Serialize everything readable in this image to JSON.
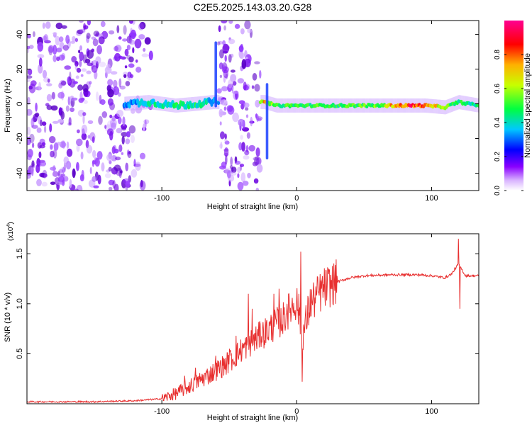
{
  "page": {
    "title": "C2E5.2025.143.03.20.G28"
  },
  "chart_data": [
    {
      "type": "heatmap",
      "xlabel": "Height of straight line (km)",
      "ylabel": "Frequency (Hz)",
      "xlim": [
        -200,
        135
      ],
      "ylim": [
        -50,
        48
      ],
      "x_ticks": [
        -100,
        0,
        100
      ],
      "y_ticks": [
        -40,
        -20,
        0,
        20,
        40
      ],
      "colorbar": {
        "label": "Normalized spectral amplitude",
        "range": [
          0,
          1
        ],
        "ticks": [
          "0.0",
          "0.2",
          "0.4",
          "0.6",
          "0.8"
        ],
        "tick_values": [
          0,
          0.2,
          0.4,
          0.6,
          0.8
        ],
        "colors": [
          "#ffffff",
          "#7a00ff",
          "#0000ff",
          "#00ffff",
          "#00ff00",
          "#ffff00",
          "#ff0000",
          "#ff0080"
        ]
      },
      "noise_regions": [
        {
          "x_start": -200,
          "x_end": -108,
          "density": 1.0
        },
        {
          "x_start": -58,
          "x_end": -27,
          "density": 1.0
        }
      ],
      "signal_trace": {
        "description_free": true,
        "x": [
          -128,
          -110,
          -90,
          -75,
          -62,
          -24,
          -15,
          0,
          20,
          40,
          60,
          80,
          95,
          110,
          120,
          135
        ],
        "freq": [
          0,
          1,
          -1,
          0,
          1,
          1,
          -1,
          -1,
          -1,
          -1,
          -1,
          -1,
          -1,
          -2,
          1,
          -1
        ],
        "amplitude": [
          0.3,
          0.4,
          0.45,
          0.45,
          0.35,
          0.7,
          0.5,
          0.5,
          0.5,
          0.5,
          0.55,
          0.85,
          0.85,
          0.55,
          0.5,
          0.45
        ]
      },
      "spikes": [
        {
          "x": -60,
          "freq_min": -2,
          "freq_max": 36
        },
        {
          "x": -22,
          "freq_min": -32,
          "freq_max": 12
        }
      ]
    },
    {
      "type": "line",
      "xlabel": "Height of straight line (km)",
      "ylabel": "SNR (10 * v/v)",
      "y_multiplier": "(x10",
      "y_multiplier_exp": "4",
      "y_multiplier_close": ")",
      "xlim": [
        -200,
        135
      ],
      "ylim": [
        0,
        1.7
      ],
      "x_ticks": [
        -100,
        0,
        100
      ],
      "y_ticks": [
        0.5,
        1.0,
        1.5
      ],
      "y_tick_labels": [
        "0.5",
        "1.0",
        "1.5"
      ],
      "color": "#e83030",
      "series": [
        {
          "x": [
            -200,
            -150,
            -120,
            -100,
            -90,
            -80,
            -70,
            -60,
            -50,
            -40,
            -30,
            -20,
            -10,
            -5,
            0,
            5,
            10,
            20,
            30,
            40,
            50,
            70,
            90,
            100,
            110,
            115,
            120,
            125,
            135
          ],
          "y": [
            0.02,
            0.02,
            0.03,
            0.05,
            0.1,
            0.17,
            0.25,
            0.33,
            0.42,
            0.55,
            0.65,
            0.75,
            0.85,
            0.95,
            1.02,
            0.7,
            1.0,
            1.15,
            1.22,
            1.26,
            1.28,
            1.29,
            1.29,
            1.28,
            1.26,
            1.3,
            1.4,
            1.28,
            1.28
          ]
        }
      ],
      "spikes": [
        {
          "x": -83,
          "y": 0.28
        },
        {
          "x": -75,
          "y": 0.36
        },
        {
          "x": -60,
          "y": 0.48
        },
        {
          "x": -50,
          "y": 0.55
        },
        {
          "x": -45,
          "y": 0.68
        },
        {
          "x": -36,
          "y": 1.1
        },
        {
          "x": -33,
          "y": 0.95
        },
        {
          "x": -27,
          "y": 0.8
        },
        {
          "x": -17,
          "y": 1.1
        },
        {
          "x": -13,
          "y": 1.15
        },
        {
          "x": -7,
          "y": 1.0
        },
        {
          "x": 3,
          "y": 1.52
        },
        {
          "x": 4,
          "y": 0.22
        },
        {
          "x": 117,
          "y": 1.36
        },
        {
          "x": 120,
          "y": 1.65
        },
        {
          "x": 121,
          "y": 0.95
        }
      ]
    }
  ]
}
